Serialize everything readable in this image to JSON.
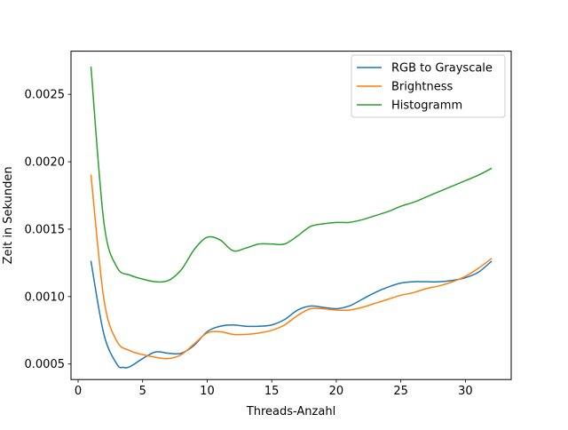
{
  "chart_data": {
    "type": "line",
    "xlabel": "Threads-Anzahl",
    "ylabel": "Zeit in Sekunden",
    "xlim": [
      -0.55,
      33.55
    ],
    "ylim": [
      0.000385,
      0.00282
    ],
    "xticks": [
      0,
      5,
      10,
      15,
      20,
      25,
      30
    ],
    "xtick_labels": [
      "0",
      "5",
      "10",
      "15",
      "20",
      "25",
      "30"
    ],
    "yticks": [
      0.0005,
      0.001,
      0.0015,
      0.002,
      0.0025
    ],
    "ytick_labels": [
      "0.0005",
      "0.0010",
      "0.0015",
      "0.0020",
      "0.0025"
    ],
    "grid": false,
    "legend_position": "upper right",
    "series": [
      {
        "name": "RGB to Grayscale",
        "color": "#1f77b4",
        "x": [
          1,
          2,
          3,
          3.5,
          4,
          5,
          6,
          7,
          8,
          9,
          10,
          11,
          12,
          13,
          14,
          15,
          16,
          17,
          18,
          19,
          20,
          21,
          22,
          23,
          24,
          25,
          26,
          27,
          28,
          29,
          30,
          31,
          32
        ],
        "y": [
          0.00126,
          0.00072,
          0.0005,
          0.000475,
          0.00048,
          0.00054,
          0.00059,
          0.00058,
          0.00058,
          0.00064,
          0.00074,
          0.00078,
          0.00079,
          0.00078,
          0.00078,
          0.00079,
          0.00083,
          0.0009,
          0.00093,
          0.00092,
          0.00091,
          0.00093,
          0.00098,
          0.00103,
          0.00107,
          0.0011,
          0.00111,
          0.00111,
          0.00111,
          0.00112,
          0.00114,
          0.00118,
          0.00126
        ]
      },
      {
        "name": "Brightness",
        "color": "#ff7f0e",
        "x": [
          1,
          2,
          3,
          4,
          5,
          6,
          7,
          8,
          9,
          10,
          11,
          12,
          13,
          14,
          15,
          16,
          17,
          18,
          19,
          20,
          21,
          22,
          23,
          24,
          25,
          26,
          27,
          28,
          29,
          30,
          31,
          32
        ],
        "y": [
          0.0019,
          0.00098,
          0.00067,
          0.0006,
          0.00057,
          0.00055,
          0.00054,
          0.00057,
          0.00065,
          0.00073,
          0.00074,
          0.00072,
          0.00072,
          0.00073,
          0.00075,
          0.00079,
          0.00086,
          0.00091,
          0.00091,
          0.0009,
          0.0009,
          0.00092,
          0.00095,
          0.00098,
          0.00101,
          0.00103,
          0.00106,
          0.00108,
          0.00111,
          0.00115,
          0.00121,
          0.00128
        ]
      },
      {
        "name": "Histogramm",
        "color": "#2ca02c",
        "x": [
          1,
          2,
          3,
          4,
          5,
          6,
          7,
          8,
          9,
          10,
          11,
          12,
          13,
          14,
          15,
          16,
          17,
          18,
          19,
          20,
          21,
          22,
          23,
          24,
          25,
          26,
          27,
          28,
          29,
          30,
          31,
          32
        ],
        "y": [
          0.0027,
          0.00155,
          0.00122,
          0.00116,
          0.00113,
          0.00111,
          0.00112,
          0.0012,
          0.00135,
          0.00144,
          0.00142,
          0.00134,
          0.00136,
          0.00139,
          0.00139,
          0.00139,
          0.00145,
          0.00152,
          0.00154,
          0.00155,
          0.00155,
          0.00157,
          0.0016,
          0.00163,
          0.00167,
          0.0017,
          0.00174,
          0.00178,
          0.00182,
          0.00186,
          0.0019,
          0.00195
        ]
      }
    ]
  }
}
